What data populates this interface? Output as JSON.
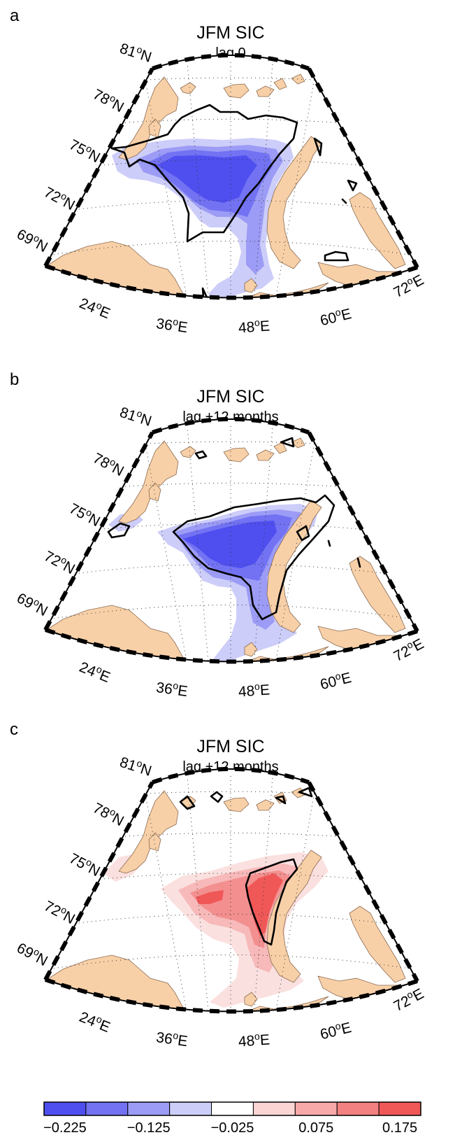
{
  "panels": [
    {
      "letter": "a",
      "title": "JFM SIC",
      "subtitle": "lag 0",
      "lat_labels": [
        "81",
        "78",
        "75",
        "72",
        "69"
      ],
      "lat_suffix": "N",
      "lon_labels": [
        "24",
        "36",
        "48",
        "60",
        "72"
      ],
      "lon_suffix": "E",
      "anomaly_sign": "negative"
    },
    {
      "letter": "b",
      "title": "JFM SIC",
      "subtitle": "lag +12 months",
      "lat_labels": [
        "81",
        "78",
        "75",
        "72",
        "69"
      ],
      "lat_suffix": "N",
      "lon_labels": [
        "24",
        "36",
        "48",
        "60",
        "72"
      ],
      "lon_suffix": "E",
      "anomaly_sign": "negative"
    },
    {
      "letter": "c",
      "title": "JFM SIC",
      "subtitle": "lag +12 months",
      "lat_labels": [
        "81",
        "78",
        "75",
        "72",
        "69"
      ],
      "lat_suffix": "N",
      "lon_labels": [
        "24",
        "36",
        "48",
        "60",
        "72"
      ],
      "lon_suffix": "E",
      "anomaly_sign": "positive"
    }
  ],
  "degree_symbol": "o",
  "colorbar": {
    "tick_labels": [
      "−0.225",
      "−0.125",
      "−0.025",
      "0.075",
      "0.175"
    ],
    "colors": [
      "#4f4ff0",
      "#7272f3",
      "#9c9cf6",
      "#cdcdfa",
      "#ffffff",
      "#fbd4d4",
      "#f7a9a9",
      "#f38181",
      "#f05858"
    ]
  },
  "colors": {
    "land": "#f8d0a8",
    "coast": "#8a6a50",
    "contour": "#000000",
    "neg_levels": [
      "#cdcdfa",
      "#9c9cf6",
      "#7272f3",
      "#4f4ff0"
    ],
    "pos_levels": [
      "#fbe0e0",
      "#f7b9b9",
      "#f38f8f",
      "#f05858"
    ]
  }
}
